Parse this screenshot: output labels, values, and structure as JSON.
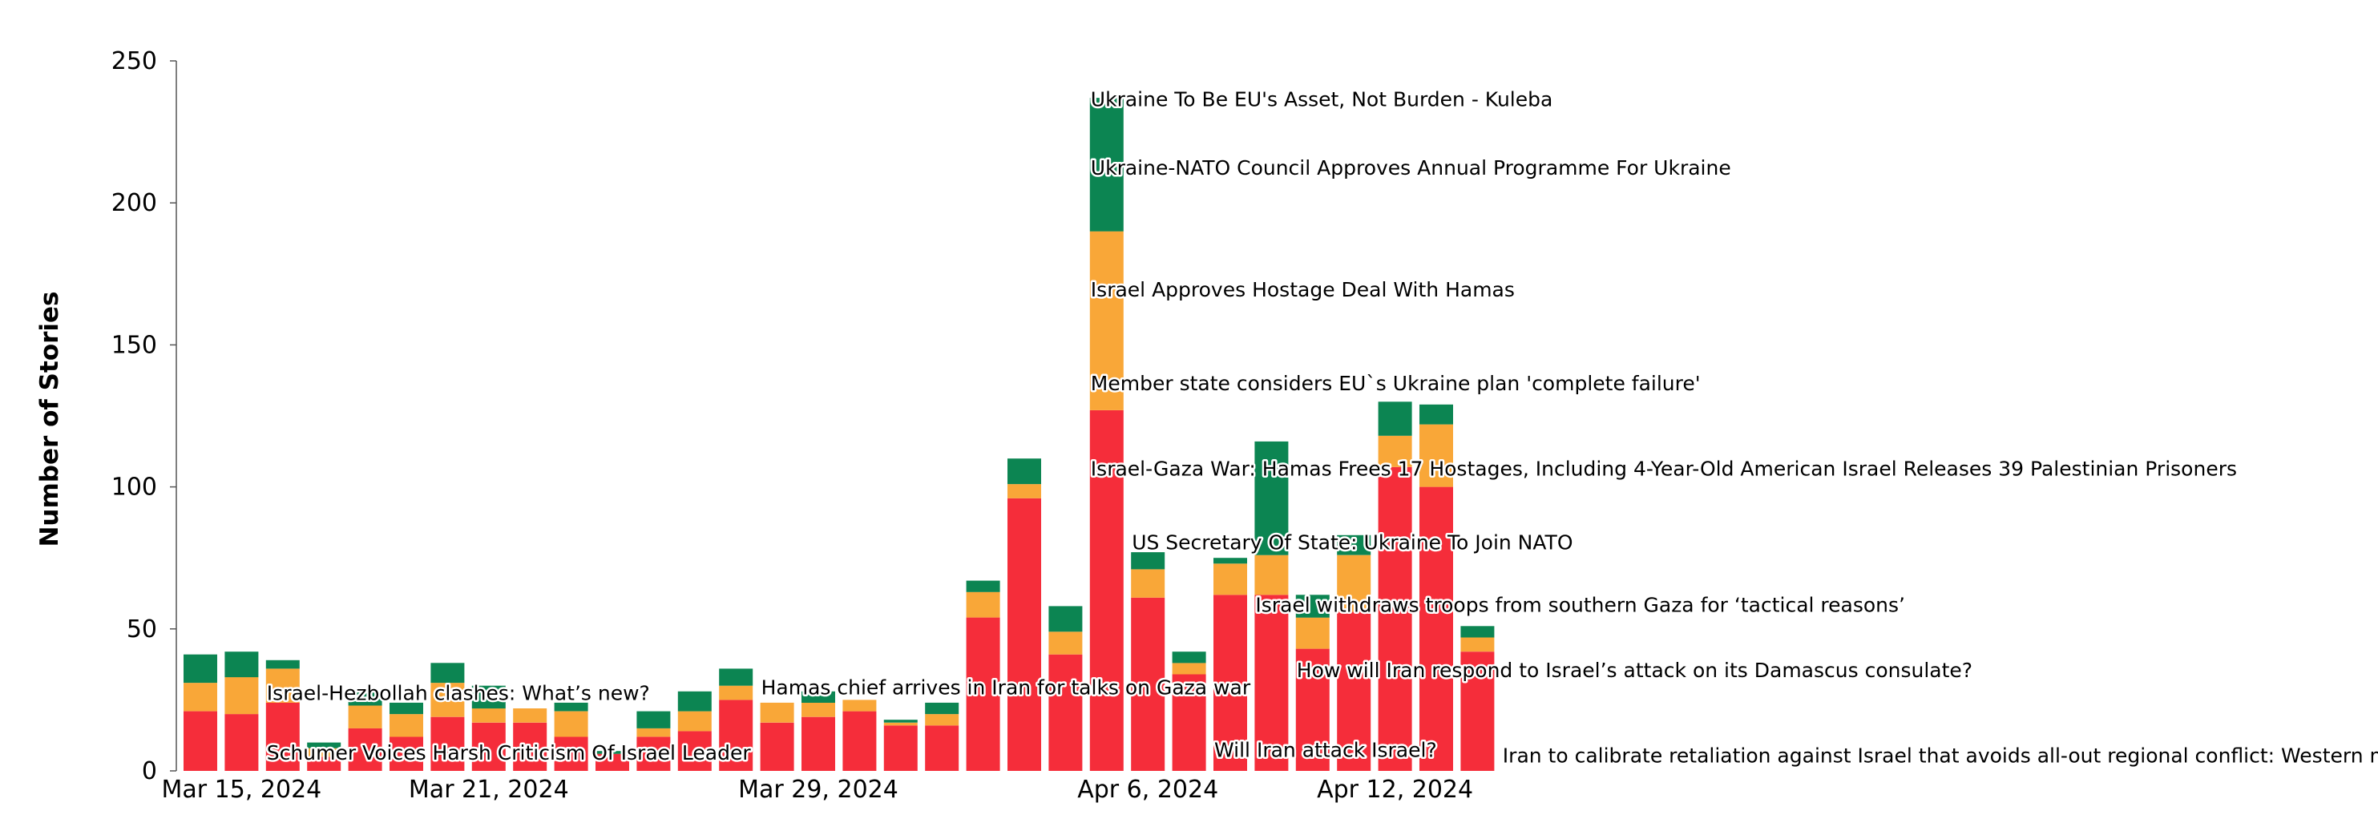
{
  "chart_data": {
    "type": "bar",
    "stacked": true,
    "title": "",
    "xlabel": "",
    "ylabel": "Number of Stories",
    "ylim": [
      0,
      250
    ],
    "yticks": [
      0,
      50,
      100,
      150,
      200,
      250
    ],
    "grid": false,
    "legend": "none",
    "x_tick_labels": [
      {
        "label": "Mar 15, 2024",
        "date": "2024-03-15"
      },
      {
        "label": "Mar 21, 2024",
        "date": "2024-03-21"
      },
      {
        "label": "Mar 29, 2024",
        "date": "2024-03-29"
      },
      {
        "label": "Apr 6, 2024",
        "date": "2024-04-06"
      },
      {
        "label": "Apr 12, 2024",
        "date": "2024-04-12"
      }
    ],
    "categories": [
      "2024-03-14",
      "2024-03-15",
      "2024-03-16",
      "2024-03-17",
      "2024-03-18",
      "2024-03-19",
      "2024-03-20",
      "2024-03-21",
      "2024-03-22",
      "2024-03-23",
      "2024-03-24",
      "2024-03-25",
      "2024-03-26",
      "2024-03-27",
      "2024-03-28",
      "2024-03-29",
      "2024-03-30",
      "2024-03-31",
      "2024-04-01",
      "2024-04-02",
      "2024-04-03",
      "2024-04-04",
      "2024-04-05",
      "2024-04-06",
      "2024-04-07",
      "2024-04-08",
      "2024-04-09",
      "2024-04-10",
      "2024-04-11",
      "2024-04-12",
      "2024-04-13",
      "2024-04-14",
      "2024-04-15"
    ],
    "series": [
      {
        "color": "#f52d3a",
        "values": [
          21,
          20,
          24,
          5,
          15,
          12,
          19,
          17,
          17,
          12,
          6,
          12,
          14,
          25,
          17,
          19,
          21,
          16,
          16,
          54,
          96,
          41,
          127,
          61,
          34,
          62,
          62,
          43,
          56,
          107,
          100,
          42,
          0
        ]
      },
      {
        "color": "#f9a738",
        "values": [
          10,
          13,
          12,
          3,
          8,
          8,
          12,
          5,
          5,
          9,
          0,
          3,
          7,
          5,
          7,
          5,
          4,
          1,
          4,
          9,
          5,
          8,
          63,
          10,
          4,
          11,
          14,
          11,
          20,
          11,
          22,
          5,
          0
        ]
      },
      {
        "color": "#0c8552",
        "values": [
          10,
          9,
          3,
          2,
          5,
          4,
          7,
          8,
          0,
          3,
          1,
          6,
          7,
          6,
          0,
          4,
          0,
          1,
          4,
          4,
          9,
          9,
          47,
          6,
          4,
          2,
          40,
          8,
          7,
          12,
          7,
          4,
          0
        ]
      }
    ],
    "annotations": [
      {
        "text": "Ukraine To Be EU's Asset, Not Burden - Kuleba",
        "date": "2024-04-05",
        "y": 234
      },
      {
        "text": "Ukraine-NATO Council Approves Annual Programme For Ukraine",
        "date": "2024-04-05",
        "y": 210
      },
      {
        "text": "Israel Approves Hostage Deal With Hamas",
        "date": "2024-04-05",
        "y": 167
      },
      {
        "text": "Member state considers EU`s Ukraine plan 'complete failure'",
        "date": "2024-04-05",
        "y": 134
      },
      {
        "text": "Israel-Gaza War: Hamas Frees 17 Hostages, Including 4-Year-Old American Israel Releases 39 Palestinian Prisoners",
        "date": "2024-04-05",
        "y": 104
      },
      {
        "text": "US Secretary Of State: Ukraine To Join NATO",
        "date": "2024-04-06",
        "y": 78
      },
      {
        "text": "Israel withdraws troops from southern Gaza for ‘tactical reasons’",
        "date": "2024-04-09",
        "y": 56
      },
      {
        "text": "How will Iran respond to Israel’s attack on its Damascus consulate?",
        "date": "2024-04-10",
        "y": 33
      },
      {
        "text": "Israel-Hezbollah clashes: What’s new?",
        "date": "2024-03-16",
        "y": 25
      },
      {
        "text": "Hamas chief arrives in Iran for talks on Gaza war",
        "date": "2024-03-28",
        "y": 27
      },
      {
        "text": "Schumer Voices Harsh Criticism Of Israel Leader",
        "date": "2024-03-16",
        "y": 4
      },
      {
        "text": "Will Iran attack Israel?",
        "date": "2024-04-08",
        "y": 5
      },
      {
        "text": "Iran to calibrate retaliation against Israel that avoids all-out regional conflict: Western media",
        "date": "2024-04-15",
        "y": 3
      }
    ]
  }
}
